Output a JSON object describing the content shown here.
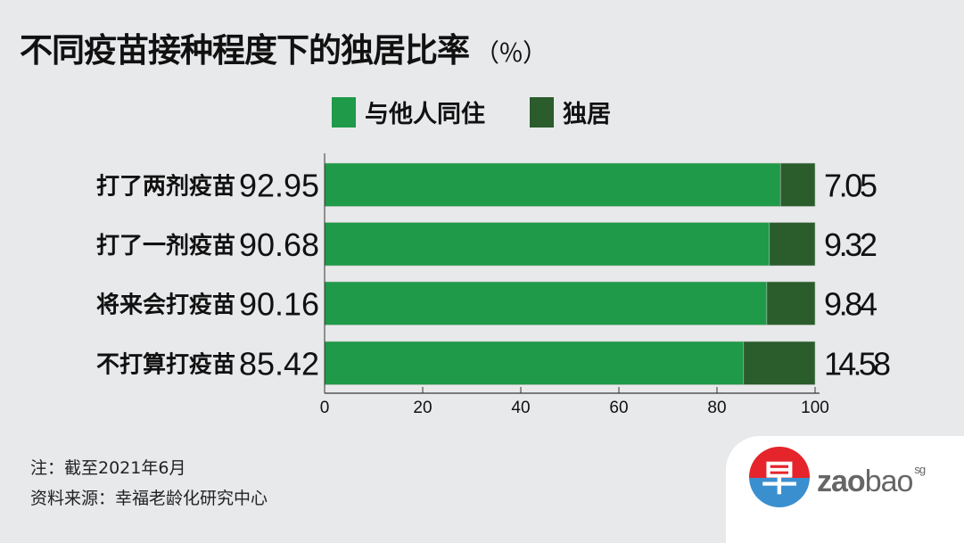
{
  "title": "不同疫苗接种程度下的独居比率",
  "title_unit": "（％）",
  "legend": [
    {
      "label": "与他人同住",
      "color": "#1e9a48"
    },
    {
      "label": "独居",
      "color": "#2a5c2c"
    }
  ],
  "chart_data": {
    "type": "bar",
    "orientation": "horizontal",
    "stacked": true,
    "title": "不同疫苗接种程度下的独居比率",
    "categories": [
      "打了两剂疫苗",
      "打了一剂疫苗",
      "将来会打疫苗",
      "不打算打疫苗"
    ],
    "series": [
      {
        "name": "与他人同住",
        "values": [
          92.95,
          90.68,
          90.16,
          85.42
        ],
        "labels": [
          "92.95",
          "90.68",
          "90.16",
          "85.42"
        ],
        "color": "#1e9a48"
      },
      {
        "name": "独居",
        "values": [
          7.05,
          9.32,
          9.84,
          14.58
        ],
        "labels": [
          "7.05",
          "9.32",
          "9.84",
          "14.58"
        ],
        "color": "#2a5c2c"
      }
    ],
    "xlim": [
      0,
      100
    ],
    "xticks": [
      0,
      20,
      40,
      60,
      80,
      100
    ],
    "xtick_labels": [
      "0",
      "20",
      "40",
      "60",
      "80",
      "100"
    ],
    "grid": false,
    "legend_position": "top"
  },
  "notes": [
    "注：截至2021年6月",
    "资料来源：幸福老龄化研究中心"
  ],
  "logo": {
    "text_bold": "zao",
    "text_light": "bao",
    "superscript": "sg",
    "glyph": "早"
  }
}
